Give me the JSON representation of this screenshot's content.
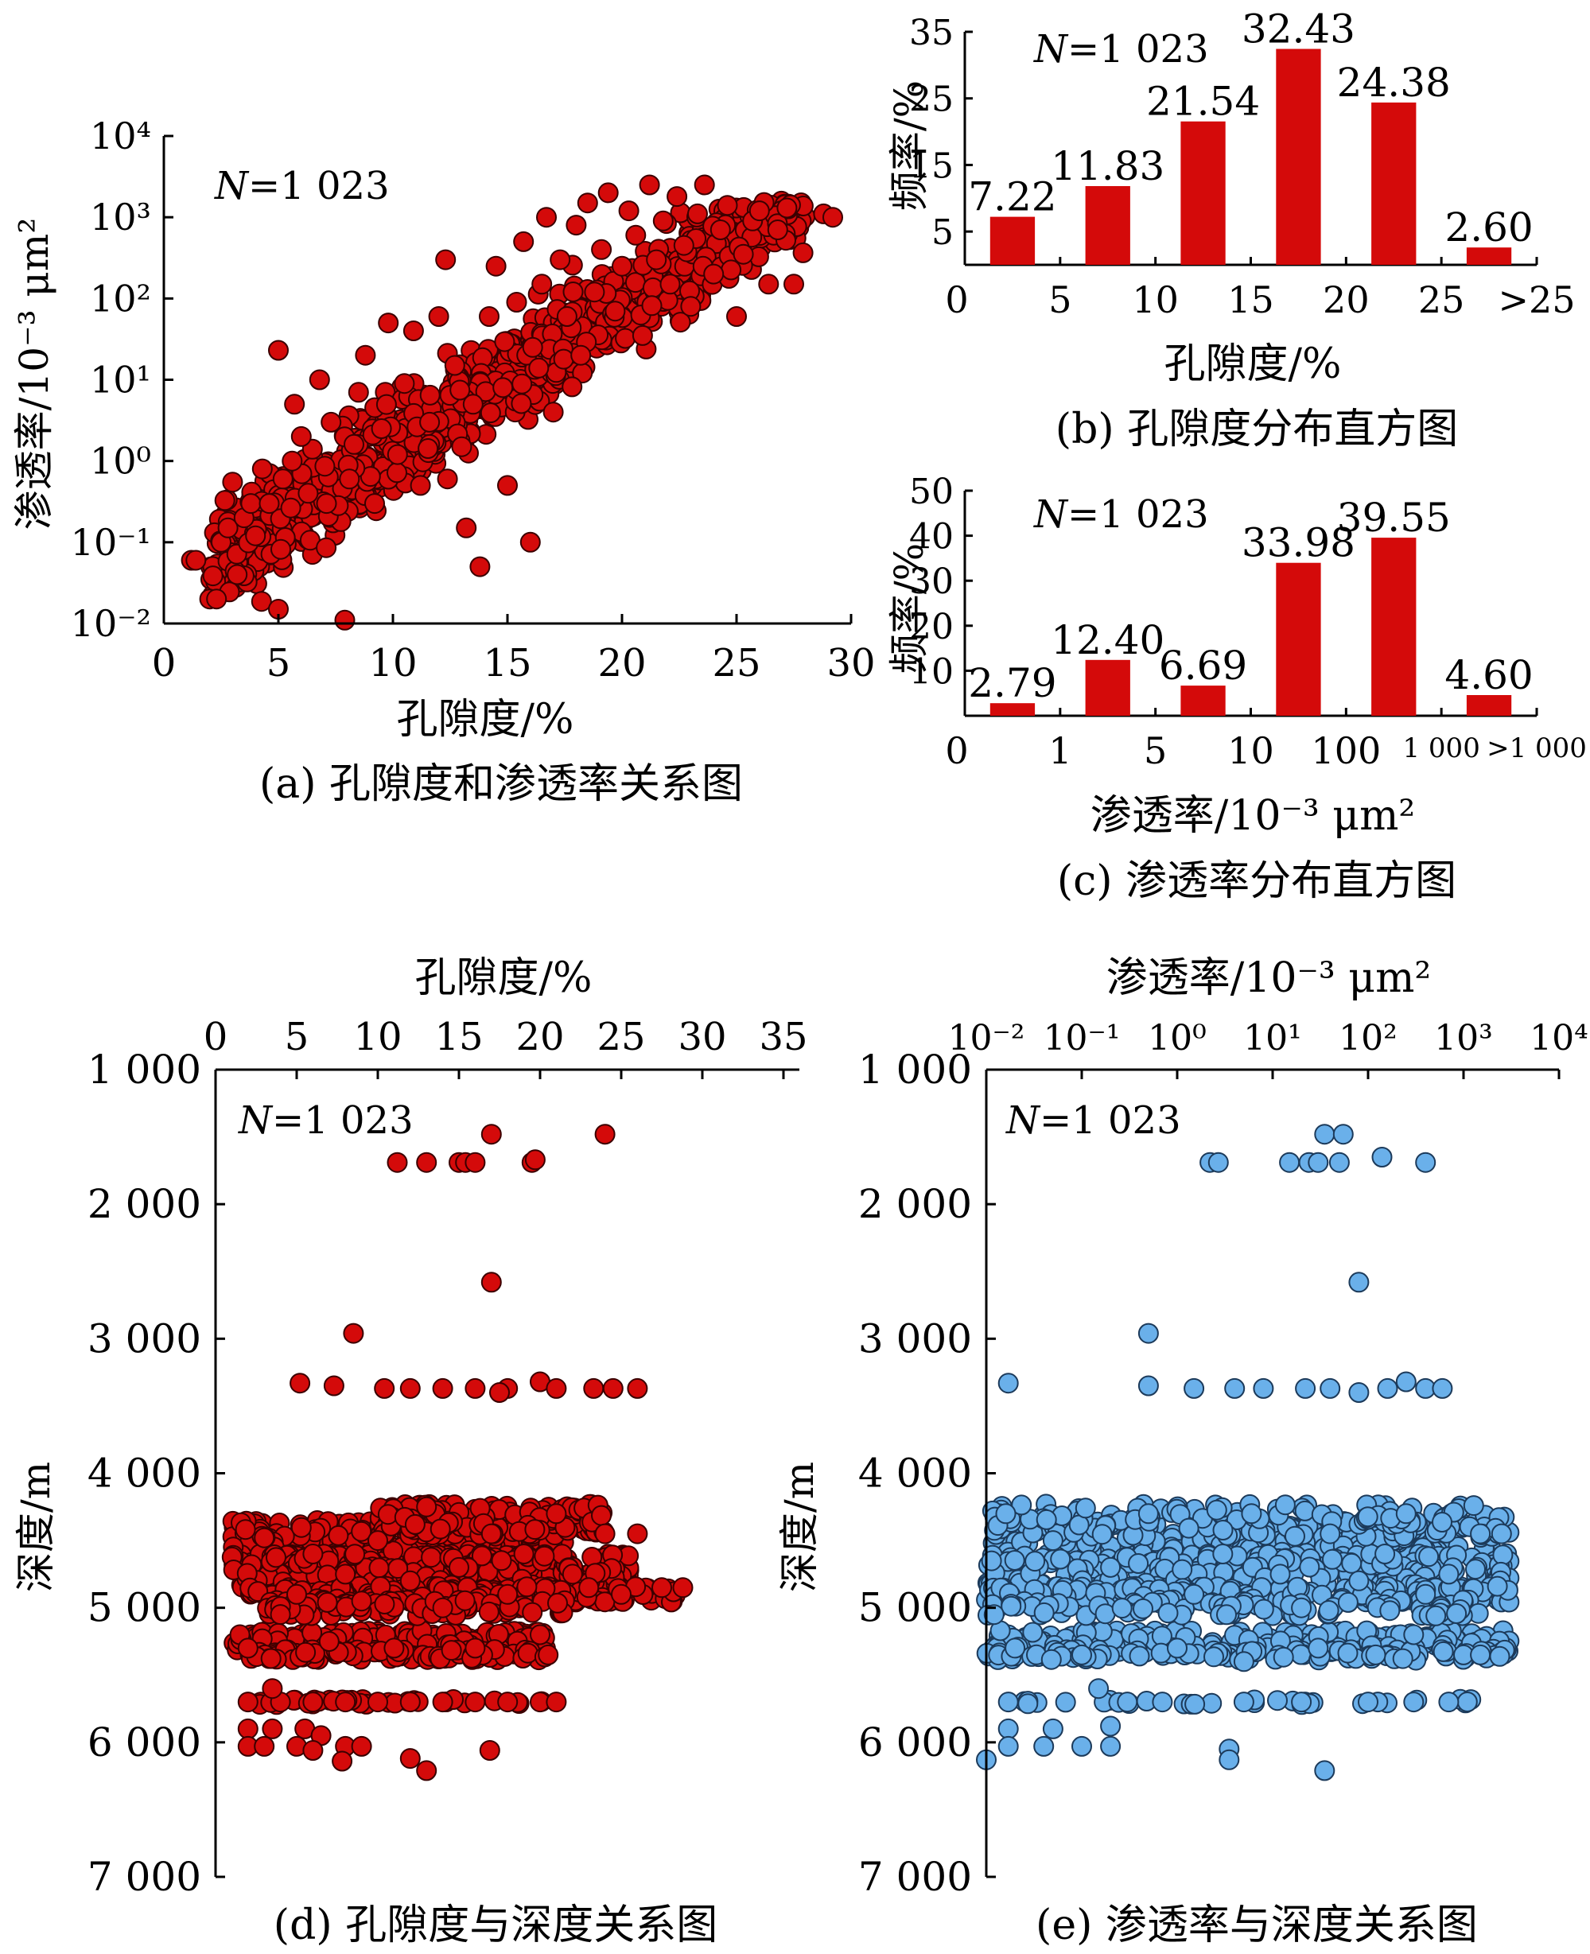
{
  "chart_data": [
    {
      "id": "a",
      "type": "scatter",
      "caption": "(a) 孔隙度和渗透率关系图",
      "n_label_italic": "N",
      "n_label_rest": "=1 023",
      "xlabel": "孔隙度/%",
      "ylabel": "渗透率/10⁻³ μm²",
      "xlim": [
        0,
        30
      ],
      "ylim": [
        0.01,
        10000
      ],
      "y_scale": "log",
      "x_ticks": [
        "0",
        "5",
        "10",
        "15",
        "20",
        "25",
        "30"
      ],
      "y_ticks": [
        "10⁻²",
        "10⁻¹",
        "10⁰",
        "10¹",
        "10²",
        "10³",
        "10⁴"
      ],
      "marker_color": "#d40a0a",
      "marker_edge": "#3a0000",
      "points": [
        [
          1.2,
          0.06
        ],
        [
          1.4,
          0.06
        ],
        [
          2.0,
          0.02
        ],
        [
          2.3,
          0.02
        ],
        [
          2.5,
          0.1
        ],
        [
          2.8,
          0.15
        ],
        [
          3.0,
          0.55
        ],
        [
          3.2,
          0.04
        ],
        [
          3.5,
          0.2
        ],
        [
          3.8,
          0.3
        ],
        [
          4.0,
          0.12
        ],
        [
          4.3,
          0.8
        ],
        [
          4.6,
          0.3
        ],
        [
          5.0,
          0.015
        ],
        [
          5.0,
          23
        ],
        [
          5.2,
          0.6
        ],
        [
          5.6,
          1.0
        ],
        [
          5.7,
          5
        ],
        [
          6.0,
          2.0
        ],
        [
          6.3,
          0.4
        ],
        [
          6.8,
          10
        ],
        [
          7.1,
          0.3
        ],
        [
          7.3,
          3
        ],
        [
          7.9,
          0.011
        ],
        [
          8.1,
          0.6
        ],
        [
          8.3,
          1.6
        ],
        [
          8.5,
          7
        ],
        [
          8.8,
          20
        ],
        [
          9.2,
          0.3
        ],
        [
          9.5,
          2.5
        ],
        [
          9.8,
          50
        ],
        [
          10.2,
          1.2
        ],
        [
          10.5,
          9
        ],
        [
          10.9,
          40
        ],
        [
          11.2,
          0.5
        ],
        [
          11.6,
          3
        ],
        [
          12.0,
          60
        ],
        [
          12.3,
          300
        ],
        [
          12.7,
          15
        ],
        [
          13.0,
          1.5
        ],
        [
          13.2,
          0.15
        ],
        [
          13.5,
          5
        ],
        [
          13.8,
          0.05
        ],
        [
          14.2,
          60
        ],
        [
          14.5,
          250
        ],
        [
          14.8,
          8
        ],
        [
          15.0,
          0.5
        ],
        [
          15.4,
          90
        ],
        [
          15.7,
          500
        ],
        [
          16.0,
          0.1
        ],
        [
          16.1,
          25
        ],
        [
          16.5,
          150
        ],
        [
          16.7,
          1000
        ],
        [
          17.0,
          4
        ],
        [
          17.3,
          300
        ],
        [
          17.6,
          60
        ],
        [
          18.0,
          800
        ],
        [
          18.2,
          20
        ],
        [
          18.5,
          1500
        ],
        [
          18.8,
          120
        ],
        [
          19.1,
          400
        ],
        [
          19.4,
          2000
        ],
        [
          19.7,
          70
        ],
        [
          20.0,
          250
        ],
        [
          20.3,
          1200
        ],
        [
          20.6,
          600
        ],
        [
          20.9,
          35
        ],
        [
          21.2,
          2500
        ],
        [
          21.5,
          300
        ],
        [
          21.8,
          900
        ],
        [
          22.1,
          150
        ],
        [
          22.4,
          1800
        ],
        [
          22.7,
          450
        ],
        [
          23.0,
          80
        ],
        [
          23.3,
          1100
        ],
        [
          23.6,
          2500
        ],
        [
          24.0,
          200
        ],
        [
          24.3,
          700
        ],
        [
          24.6,
          1400
        ],
        [
          25.0,
          60
        ],
        [
          25.3,
          350
        ],
        [
          25.7,
          900
        ],
        [
          26.0,
          1200
        ],
        [
          26.4,
          150
        ],
        [
          26.8,
          700
        ],
        [
          27.2,
          1300
        ],
        [
          27.5,
          150
        ],
        [
          28.8,
          1100
        ],
        [
          29.2,
          1000
        ]
      ]
    },
    {
      "id": "b",
      "type": "bar",
      "caption": "(b) 孔隙度分布直方图",
      "n_label_italic": "N",
      "n_label_rest": "=1 023",
      "xlabel": "孔隙度/%",
      "ylabel": "频率/%",
      "ylim": [
        0,
        35
      ],
      "x_ticks": [
        "0",
        "5",
        "10",
        "15",
        "20",
        "25",
        ">25"
      ],
      "y_ticks": [
        "5",
        "15",
        "25",
        "35"
      ],
      "values": [
        7.22,
        11.83,
        21.54,
        32.43,
        24.38,
        2.6
      ],
      "value_labels": [
        "7.22",
        "11.83",
        "21.54",
        "32.43",
        "24.38",
        "2.60"
      ],
      "bar_color": "#d40a0a"
    },
    {
      "id": "c",
      "type": "bar",
      "caption": "(c) 渗透率分布直方图",
      "n_label_italic": "N",
      "n_label_rest": "=1 023",
      "xlabel": "渗透率/10⁻³ μm²",
      "ylabel": "频率/%",
      "ylim": [
        0,
        50
      ],
      "x_ticks": [
        "0",
        "1",
        "5",
        "10",
        "100",
        "1 000",
        ">1 000"
      ],
      "y_ticks": [
        "10",
        "20",
        "30",
        "40",
        "50"
      ],
      "values": [
        2.79,
        12.4,
        6.69,
        33.98,
        39.55,
        4.6
      ],
      "value_labels": [
        "2.79",
        "12.40",
        "6.69",
        "33.98",
        "39.55",
        "4.60"
      ],
      "bar_color": "#d40a0a"
    },
    {
      "id": "d",
      "type": "scatter",
      "caption": "(d) 孔隙度与深度关系图",
      "n_label_italic": "N",
      "n_label_rest": "=1 023",
      "xlabel": "孔隙度/%",
      "ylabel": "深度/m",
      "xlim": [
        0,
        35
      ],
      "ylim": [
        1000,
        7000
      ],
      "y_inverted": true,
      "x_ticks": [
        "0",
        "5",
        "10",
        "15",
        "20",
        "25",
        "30",
        "35"
      ],
      "y_ticks": [
        "1 000",
        "2 000",
        "3 000",
        "4 000",
        "5 000",
        "6 000",
        "7 000"
      ],
      "marker_color": "#d40a0a",
      "marker_edge": "#3a0000",
      "points": [
        [
          17.0,
          1480
        ],
        [
          24.0,
          1480
        ],
        [
          11.2,
          1690
        ],
        [
          13.0,
          1690
        ],
        [
          15.0,
          1690
        ],
        [
          15.4,
          1690
        ],
        [
          16.0,
          1690
        ],
        [
          19.5,
          1690
        ],
        [
          19.7,
          1670
        ],
        [
          17.0,
          2580
        ],
        [
          8.5,
          2960
        ],
        [
          5.2,
          3330
        ],
        [
          7.3,
          3350
        ],
        [
          10.4,
          3370
        ],
        [
          12.0,
          3370
        ],
        [
          14.0,
          3370
        ],
        [
          16.0,
          3370
        ],
        [
          18.0,
          3370
        ],
        [
          20.0,
          3320
        ],
        [
          21.0,
          3370
        ],
        [
          23.3,
          3370
        ],
        [
          24.5,
          3370
        ],
        [
          26.0,
          3370
        ],
        [
          17.5,
          3400
        ],
        [
          1.5,
          5200
        ],
        [
          2.0,
          5300
        ],
        [
          3.0,
          4480
        ],
        [
          4.0,
          5050
        ],
        [
          5.0,
          4900
        ],
        [
          6.0,
          4600
        ],
        [
          7.0,
          5250
        ],
        [
          8.0,
          4750
        ],
        [
          9.0,
          4950
        ],
        [
          10.0,
          4500
        ],
        [
          11.0,
          5300
        ],
        [
          12.0,
          4800
        ],
        [
          13.0,
          4250
        ],
        [
          14.0,
          5000
        ],
        [
          15.0,
          4700
        ],
        [
          16.0,
          5300
        ],
        [
          17.0,
          4450
        ],
        [
          18.0,
          4900
        ],
        [
          19.0,
          4600
        ],
        [
          20.0,
          5200
        ],
        [
          21.0,
          4300
        ],
        [
          22.0,
          4750
        ],
        [
          23.0,
          4850
        ],
        [
          24.0,
          4450
        ],
        [
          25.0,
          4900
        ],
        [
          26.0,
          4450
        ],
        [
          27.5,
          4850
        ],
        [
          28.8,
          4850
        ],
        [
          20.5,
          5350
        ],
        [
          2.0,
          5700
        ],
        [
          4.0,
          5700
        ],
        [
          6.0,
          5700
        ],
        [
          8.0,
          5700
        ],
        [
          10.0,
          5700
        ],
        [
          12.0,
          5700
        ],
        [
          14.0,
          5700
        ],
        [
          16.0,
          5700
        ],
        [
          18.0,
          5700
        ],
        [
          20.0,
          5700
        ],
        [
          21.0,
          5700
        ],
        [
          3.5,
          5600
        ],
        [
          2.0,
          5900
        ],
        [
          3.5,
          5900
        ],
        [
          5.5,
          5900
        ],
        [
          6.5,
          5950
        ],
        [
          2.0,
          6030
        ],
        [
          3.0,
          6030
        ],
        [
          5.0,
          6030
        ],
        [
          6.0,
          6060
        ],
        [
          8.0,
          6030
        ],
        [
          7.8,
          6140
        ],
        [
          9.0,
          6030
        ],
        [
          12.0,
          6120
        ],
        [
          13.0,
          6210
        ],
        [
          16.9,
          6060
        ]
      ]
    },
    {
      "id": "e",
      "type": "scatter",
      "caption": "(e) 渗透率与深度关系图",
      "n_label_italic": "N",
      "n_label_rest": "=1 023",
      "xlabel": "渗透率/10⁻³ μm²",
      "ylabel": "深度/m",
      "xlim": [
        0.01,
        10000
      ],
      "x_scale": "log",
      "ylim": [
        1000,
        7000
      ],
      "y_inverted": true,
      "x_ticks": [
        "10⁻²",
        "10⁻¹",
        "10⁰",
        "10¹",
        "10²",
        "10³",
        "10⁴"
      ],
      "y_ticks": [
        "1 000",
        "2 000",
        "3 000",
        "4 000",
        "5 000",
        "6 000",
        "7 000"
      ],
      "marker_color": "#6ab0ea",
      "marker_edge": "#1c3a5a",
      "points": [
        [
          35,
          1480
        ],
        [
          55,
          1480
        ],
        [
          2.2,
          1690
        ],
        [
          2.7,
          1690
        ],
        [
          15,
          1690
        ],
        [
          24,
          1690
        ],
        [
          30,
          1690
        ],
        [
          50,
          1690
        ],
        [
          140,
          1650
        ],
        [
          400,
          1690
        ],
        [
          80,
          2580
        ],
        [
          0.5,
          2960
        ],
        [
          0.017,
          3330
        ],
        [
          0.5,
          3350
        ],
        [
          1.5,
          3370
        ],
        [
          4,
          3370
        ],
        [
          8,
          3370
        ],
        [
          22,
          3370
        ],
        [
          40,
          3370
        ],
        [
          80,
          3400
        ],
        [
          160,
          3370
        ],
        [
          250,
          3320
        ],
        [
          400,
          3370
        ],
        [
          600,
          3370
        ],
        [
          0.016,
          4300
        ],
        [
          0.05,
          4500
        ],
        [
          0.2,
          4700
        ],
        [
          0.5,
          4300
        ],
        [
          1.5,
          4900
        ],
        [
          3,
          4600
        ],
        [
          6,
          4300
        ],
        [
          12,
          4750
        ],
        [
          20,
          5000
        ],
        [
          40,
          4450
        ],
        [
          80,
          4800
        ],
        [
          150,
          4600
        ],
        [
          250,
          4300
        ],
        [
          400,
          4900
        ],
        [
          700,
          4750
        ],
        [
          1500,
          4450
        ],
        [
          2500,
          4450
        ],
        [
          0.02,
          5300
        ],
        [
          0.1,
          5350
        ],
        [
          1,
          5300
        ],
        [
          5,
          5400
        ],
        [
          30,
          5300
        ],
        [
          120,
          5350
        ],
        [
          300,
          5200
        ],
        [
          1000,
          5350
        ],
        [
          1500,
          5350
        ],
        [
          0.017,
          5700
        ],
        [
          0.3,
          5700
        ],
        [
          0.7,
          5700
        ],
        [
          5,
          5700
        ],
        [
          20,
          5700
        ],
        [
          100,
          5700
        ],
        [
          300,
          5700
        ],
        [
          700,
          5700
        ],
        [
          0.15,
          5600
        ],
        [
          0.017,
          5900
        ],
        [
          0.05,
          5900
        ],
        [
          0.2,
          5880
        ],
        [
          0.017,
          6030
        ],
        [
          0.04,
          6030
        ],
        [
          0.1,
          6030
        ],
        [
          0.2,
          6030
        ],
        [
          0.01,
          6130
        ],
        [
          3.5,
          6050
        ],
        [
          3.5,
          6130
        ],
        [
          35,
          6210
        ]
      ]
    }
  ]
}
